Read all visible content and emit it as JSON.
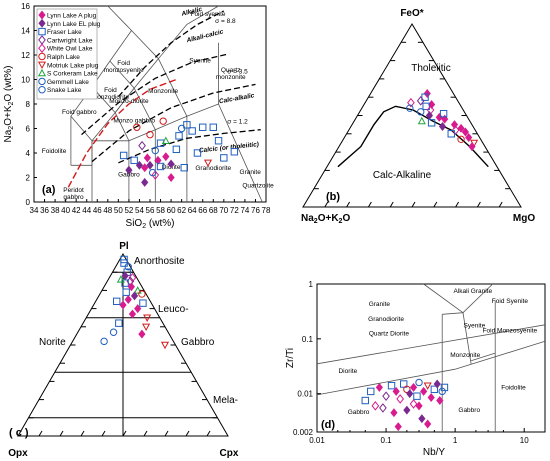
{
  "legend": {
    "entries": [
      {
        "label": "Lynn Lake A plug",
        "color": "#d81b8f",
        "marker": "diamond-fill"
      },
      {
        "label": "Lynn Lake EL plug",
        "color": "#7a2a8f",
        "marker": "diamond-fill"
      },
      {
        "label": "Fraser Lake",
        "color": "#1f5fbf",
        "marker": "square"
      },
      {
        "label": "Cartwright Lake",
        "color": "#7a2a8f",
        "marker": "diamond"
      },
      {
        "label": "White Owl Lake",
        "color": "#d81b8f",
        "marker": "diamond"
      },
      {
        "label": "Ralph Lake",
        "color": "#d21a1a",
        "marker": "circle"
      },
      {
        "label": "Motriuk Lake plug",
        "color": "#d21a1a",
        "marker": "tri-down"
      },
      {
        "label": "S Corkeram Lake",
        "color": "#1fa33a",
        "marker": "tri-up"
      },
      {
        "label": "Gemmell Lake",
        "color": "#1f5fbf",
        "marker": "circle"
      },
      {
        "label": "Snake Lake",
        "color": "#1f5fbf",
        "marker": "circle"
      }
    ]
  },
  "chart_data": [
    {
      "type": "scatter",
      "panel": "(a)",
      "xlabel": "SiO2 (wt%)",
      "ylabel": "Na2O+K2O (wt%)",
      "xlim": [
        34,
        78
      ],
      "ylim": [
        0,
        16
      ],
      "xticks": [
        "34",
        "36",
        "38",
        "40",
        "42",
        "44",
        "46",
        "48",
        "50",
        "52",
        "54",
        "56",
        "58",
        "60",
        "62",
        "64",
        "66",
        "68",
        "70",
        "72",
        "74",
        "76",
        "78"
      ],
      "yticks": [
        "0",
        "2",
        "4",
        "6",
        "8",
        "10",
        "12",
        "14",
        "16"
      ],
      "field_labels": [
        "Foid syenite",
        "Syenite",
        "Foid monzosyenite",
        "Quartz monzonite",
        "Foid monzodiorite",
        "Monzonite",
        "Monzo-diorite",
        "Foid gabbro",
        "Foidolite",
        "Monzo gabbro",
        "Gabbro",
        "Diorite",
        "Granodiorite",
        "Granite",
        "Quartzolite",
        "Peridot gabbro"
      ],
      "series_labels": [
        "Alkalic",
        "Alkali-calcic",
        "Calc-alkalic",
        "Calcic (or tholeiitic)"
      ],
      "sigma_labels": [
        "σ = 8.8",
        "σ = 3.5",
        "σ = 1.2"
      ],
      "points": [
        {
          "x": 52,
          "y": 2.6,
          "s": 1
        },
        {
          "x": 53,
          "y": 3.4,
          "s": 2
        },
        {
          "x": 54,
          "y": 3.0,
          "s": 1
        },
        {
          "x": 55,
          "y": 2.8,
          "s": 0
        },
        {
          "x": 55.5,
          "y": 3.6,
          "s": 0
        },
        {
          "x": 56,
          "y": 3.0,
          "s": 1
        },
        {
          "x": 57,
          "y": 4.2,
          "s": 8
        },
        {
          "x": 57.5,
          "y": 3.4,
          "s": 0
        },
        {
          "x": 58,
          "y": 2.9,
          "s": 2
        },
        {
          "x": 58,
          "y": 4.8,
          "s": 2
        },
        {
          "x": 59,
          "y": 3.7,
          "s": 0
        },
        {
          "x": 60,
          "y": 3.1,
          "s": 1
        },
        {
          "x": 61,
          "y": 4.3,
          "s": 2
        },
        {
          "x": 61.5,
          "y": 5.4,
          "s": 2
        },
        {
          "x": 62,
          "y": 6.0,
          "s": 8
        },
        {
          "x": 63,
          "y": 6.3,
          "s": 2
        },
        {
          "x": 64,
          "y": 5.8,
          "s": 2
        },
        {
          "x": 65,
          "y": 4.0,
          "s": 2
        },
        {
          "x": 66,
          "y": 6.1,
          "s": 2
        },
        {
          "x": 68,
          "y": 6.1,
          "s": 2
        },
        {
          "x": 69,
          "y": 5.0,
          "s": 2
        },
        {
          "x": 70,
          "y": 3.6,
          "s": 2
        },
        {
          "x": 72,
          "y": 4.1,
          "s": 2
        },
        {
          "x": 67,
          "y": 3.2,
          "s": 6
        },
        {
          "x": 57,
          "y": 2.2,
          "s": 4
        },
        {
          "x": 54.5,
          "y": 4.6,
          "s": 3
        },
        {
          "x": 56,
          "y": 5.5,
          "s": 5
        },
        {
          "x": 58.5,
          "y": 6.6,
          "s": 5
        },
        {
          "x": 53.5,
          "y": 6.1,
          "s": 5
        },
        {
          "x": 55,
          "y": 1.6,
          "s": 1
        },
        {
          "x": 60,
          "y": 2.0,
          "s": 0
        },
        {
          "x": 56.5,
          "y": 2.4,
          "s": 8
        },
        {
          "x": 59,
          "y": 5.0,
          "s": 7
        },
        {
          "x": 51,
          "y": 3.8,
          "s": 2
        },
        {
          "x": 62.5,
          "y": 2.8,
          "s": 2
        }
      ]
    },
    {
      "type": "scatter",
      "panel": "(b)",
      "ternary": true,
      "apex_top": "FeO*",
      "apex_left": "Na2O+K2O",
      "apex_right": "MgO",
      "field_labels": [
        "Tholeiitic",
        "Calc-Alkaline"
      ],
      "points": [
        {
          "a": 0.62,
          "b": 0.12,
          "c": 0.26,
          "s": 0
        },
        {
          "a": 0.6,
          "b": 0.14,
          "c": 0.26,
          "s": 2
        },
        {
          "a": 0.58,
          "b": 0.17,
          "c": 0.25,
          "s": 3
        },
        {
          "a": 0.56,
          "b": 0.13,
          "c": 0.31,
          "s": 0
        },
        {
          "a": 0.55,
          "b": 0.16,
          "c": 0.29,
          "s": 2
        },
        {
          "a": 0.53,
          "b": 0.15,
          "c": 0.32,
          "s": 4
        },
        {
          "a": 0.52,
          "b": 0.2,
          "c": 0.28,
          "s": 9
        },
        {
          "a": 0.5,
          "b": 0.17,
          "c": 0.33,
          "s": 1
        },
        {
          "a": 0.49,
          "b": 0.13,
          "c": 0.38,
          "s": 0
        },
        {
          "a": 0.48,
          "b": 0.11,
          "c": 0.41,
          "s": 0
        },
        {
          "a": 0.46,
          "b": 0.18,
          "c": 0.36,
          "s": 2
        },
        {
          "a": 0.45,
          "b": 0.08,
          "c": 0.47,
          "s": 0
        },
        {
          "a": 0.44,
          "b": 0.14,
          "c": 0.42,
          "s": 1
        },
        {
          "a": 0.43,
          "b": 0.06,
          "c": 0.51,
          "s": 0
        },
        {
          "a": 0.42,
          "b": 0.09,
          "c": 0.49,
          "s": 4
        },
        {
          "a": 0.41,
          "b": 0.05,
          "c": 0.54,
          "s": 0
        },
        {
          "a": 0.4,
          "b": 0.12,
          "c": 0.48,
          "s": 2
        },
        {
          "a": 0.38,
          "b": 0.05,
          "c": 0.57,
          "s": 0
        },
        {
          "a": 0.37,
          "b": 0.09,
          "c": 0.54,
          "s": 5
        },
        {
          "a": 0.35,
          "b": 0.04,
          "c": 0.61,
          "s": 6
        },
        {
          "a": 0.33,
          "b": 0.06,
          "c": 0.61,
          "s": 0
        },
        {
          "a": 0.57,
          "b": 0.22,
          "c": 0.21,
          "s": 4
        },
        {
          "a": 0.54,
          "b": 0.24,
          "c": 0.22,
          "s": 9
        },
        {
          "a": 0.51,
          "b": 0.1,
          "c": 0.39,
          "s": 2
        },
        {
          "a": 0.47,
          "b": 0.22,
          "c": 0.31,
          "s": 7
        }
      ]
    },
    {
      "type": "scatter",
      "panel": "(c)",
      "ternary": true,
      "apex_top": "Pl",
      "apex_left": "Opx",
      "apex_right": "Cpx",
      "field_labels": [
        "Anorthosite",
        "Leuco-",
        "Norite",
        "Gabbro",
        "Mela-"
      ],
      "points": [
        {
          "a": 0.97,
          "b": 0.01,
          "c": 0.02,
          "s": 2
        },
        {
          "a": 0.95,
          "b": 0.02,
          "c": 0.03,
          "s": 2
        },
        {
          "a": 0.93,
          "b": 0.01,
          "c": 0.06,
          "s": 9
        },
        {
          "a": 0.9,
          "b": 0.03,
          "c": 0.07,
          "s": 2
        },
        {
          "a": 0.88,
          "b": 0.05,
          "c": 0.07,
          "s": 1
        },
        {
          "a": 0.87,
          "b": 0.02,
          "c": 0.11,
          "s": 4
        },
        {
          "a": 0.85,
          "b": 0.04,
          "c": 0.11,
          "s": 3
        },
        {
          "a": 0.84,
          "b": 0.07,
          "c": 0.09,
          "s": 2
        },
        {
          "a": 0.82,
          "b": 0.05,
          "c": 0.13,
          "s": 0
        },
        {
          "a": 0.8,
          "b": 0.03,
          "c": 0.17,
          "s": 7
        },
        {
          "a": 0.79,
          "b": 0.09,
          "c": 0.12,
          "s": 2
        },
        {
          "a": 0.77,
          "b": 0.06,
          "c": 0.17,
          "s": 1
        },
        {
          "a": 0.75,
          "b": 0.1,
          "c": 0.15,
          "s": 0
        },
        {
          "a": 0.73,
          "b": 0.04,
          "c": 0.23,
          "s": 2
        },
        {
          "a": 0.72,
          "b": 0.14,
          "c": 0.14,
          "s": 0
        },
        {
          "a": 0.7,
          "b": 0.08,
          "c": 0.22,
          "s": 0
        },
        {
          "a": 0.67,
          "b": 0.12,
          "c": 0.21,
          "s": 0
        },
        {
          "a": 0.65,
          "b": 0.06,
          "c": 0.29,
          "s": 6
        },
        {
          "a": 0.62,
          "b": 0.21,
          "c": 0.17,
          "s": 2
        },
        {
          "a": 0.6,
          "b": 0.09,
          "c": 0.31,
          "s": 6
        },
        {
          "a": 0.57,
          "b": 0.26,
          "c": 0.17,
          "s": 8
        },
        {
          "a": 0.56,
          "b": 0.13,
          "c": 0.31,
          "s": 0
        },
        {
          "a": 0.52,
          "b": 0.33,
          "c": 0.15,
          "s": 8
        },
        {
          "a": 0.5,
          "b": 0.05,
          "c": 0.45,
          "s": 6
        },
        {
          "a": 0.86,
          "b": 0.08,
          "c": 0.06,
          "s": 7
        },
        {
          "a": 0.78,
          "b": 0.02,
          "c": 0.2,
          "s": 5
        },
        {
          "a": 0.74,
          "b": 0.16,
          "c": 0.1,
          "s": 2
        }
      ]
    },
    {
      "type": "scatter",
      "panel": "(d)",
      "xlabel": "Nb/Y",
      "ylabel": "Zr/Ti",
      "xscale": "log",
      "yscale": "log",
      "xlim": [
        0.01,
        20
      ],
      "ylim": [
        0.002,
        1
      ],
      "xticks": [
        "0.01",
        "0.1",
        "1",
        "10"
      ],
      "yticks": [
        "0.002",
        "0.01",
        "0.1",
        "1"
      ],
      "field_labels": [
        "Granite",
        "Granodiorite",
        "Quartz Diorite",
        "Alkali Granite",
        "Syenite",
        "Foid Syenite",
        "Foid Monzosyenite",
        "Monzonite",
        "Diorite",
        "Foidolite",
        "Gabbro",
        "Gabbro"
      ],
      "points": [
        {
          "x": 0.06,
          "y": 0.011,
          "s": 2
        },
        {
          "x": 0.08,
          "y": 0.013,
          "s": 0
        },
        {
          "x": 0.1,
          "y": 0.009,
          "s": 3
        },
        {
          "x": 0.12,
          "y": 0.014,
          "s": 2
        },
        {
          "x": 0.14,
          "y": 0.011,
          "s": 0
        },
        {
          "x": 0.16,
          "y": 0.008,
          "s": 4
        },
        {
          "x": 0.18,
          "y": 0.015,
          "s": 2
        },
        {
          "x": 0.2,
          "y": 0.012,
          "s": 5
        },
        {
          "x": 0.22,
          "y": 0.01,
          "s": 1
        },
        {
          "x": 0.25,
          "y": 0.013,
          "s": 0
        },
        {
          "x": 0.28,
          "y": 0.009,
          "s": 2
        },
        {
          "x": 0.3,
          "y": 0.016,
          "s": 9
        },
        {
          "x": 0.35,
          "y": 0.011,
          "s": 0
        },
        {
          "x": 0.4,
          "y": 0.014,
          "s": 6
        },
        {
          "x": 0.45,
          "y": 0.0085,
          "s": 0
        },
        {
          "x": 0.5,
          "y": 0.012,
          "s": 2
        },
        {
          "x": 0.55,
          "y": 0.015,
          "s": 1
        },
        {
          "x": 0.6,
          "y": 0.0075,
          "s": 0
        },
        {
          "x": 0.07,
          "y": 0.006,
          "s": 4
        },
        {
          "x": 0.09,
          "y": 0.0055,
          "s": 3
        },
        {
          "x": 0.13,
          "y": 0.0045,
          "s": 0
        },
        {
          "x": 0.2,
          "y": 0.005,
          "s": 1
        },
        {
          "x": 0.3,
          "y": 0.006,
          "s": 0
        },
        {
          "x": 0.15,
          "y": 0.0025,
          "s": 0
        },
        {
          "x": 0.4,
          "y": 0.0028,
          "s": 0
        },
        {
          "x": 0.25,
          "y": 0.0065,
          "s": 4
        },
        {
          "x": 0.05,
          "y": 0.0075,
          "s": 2
        },
        {
          "x": 0.7,
          "y": 0.013,
          "s": 2
        },
        {
          "x": 0.65,
          "y": 0.011,
          "s": 8
        },
        {
          "x": 0.33,
          "y": 0.0035,
          "s": 1
        }
      ]
    }
  ]
}
